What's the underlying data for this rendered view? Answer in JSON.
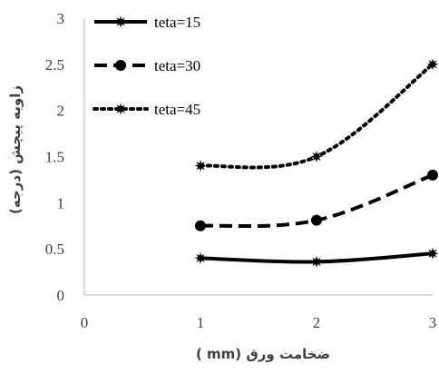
{
  "chart_data": {
    "type": "line",
    "x": [
      1,
      2,
      3
    ],
    "xlabel": "ضخامت ورق (mm )",
    "ylabel": "زاویه پیچش (درجه)",
    "xlim": [
      0,
      3
    ],
    "ylim": [
      0,
      3
    ],
    "x_ticks": [
      "0",
      "1",
      "2",
      "3"
    ],
    "y_ticks": [
      "0",
      "0.5",
      "1",
      "1.5",
      "2",
      "2.5",
      "3"
    ],
    "grid": false,
    "legend_position": "top-left",
    "series": [
      {
        "name": "teta=15",
        "values": [
          0.4,
          0.36,
          0.45
        ],
        "line_style": "solid",
        "marker": "star"
      },
      {
        "name": "teta=30",
        "values": [
          0.75,
          0.81,
          1.3
        ],
        "line_style": "dashed",
        "marker": "circle"
      },
      {
        "name": "teta=45",
        "values": [
          1.4,
          1.5,
          2.5
        ],
        "line_style": "dotted",
        "marker": "star"
      }
    ],
    "colors": {
      "series": "#000000",
      "axis": "#bfbfbf",
      "text": "#404040"
    }
  }
}
